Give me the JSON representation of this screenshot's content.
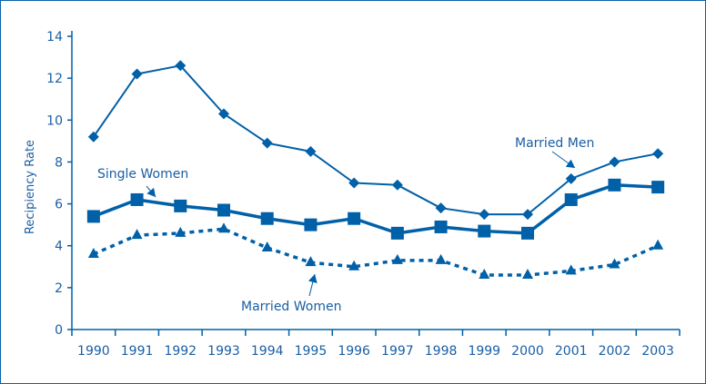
{
  "chart_data": {
    "type": "line",
    "title": "",
    "xlabel": "",
    "ylabel": "Recipiency Rate",
    "ylim": [
      0,
      14
    ],
    "yticks": [
      0,
      2,
      4,
      6,
      8,
      10,
      12,
      14
    ],
    "categories": [
      "1990",
      "1991",
      "1992",
      "1993",
      "1994",
      "1995",
      "1996",
      "1997",
      "1998",
      "1999",
      "2000",
      "2001",
      "2002",
      "2003"
    ],
    "grid": false,
    "legend": "inline annotations",
    "color": "#0060a8",
    "series": [
      {
        "name": "Married Men",
        "marker": "diamond",
        "style": "solid",
        "values": [
          9.2,
          12.2,
          12.6,
          10.3,
          8.9,
          8.5,
          7.0,
          6.9,
          5.8,
          5.5,
          5.5,
          7.2,
          8.0,
          8.4
        ]
      },
      {
        "name": "Single Women",
        "marker": "square",
        "style": "solid-thick",
        "values": [
          5.4,
          6.2,
          5.9,
          5.7,
          5.3,
          5.0,
          5.3,
          4.6,
          4.9,
          4.7,
          4.6,
          6.2,
          6.9,
          6.8
        ]
      },
      {
        "name": "Married Women",
        "marker": "triangle",
        "style": "dotted",
        "values": [
          3.6,
          4.5,
          4.6,
          4.8,
          3.9,
          3.2,
          3.0,
          3.3,
          3.3,
          2.6,
          2.6,
          2.8,
          3.1,
          4.0
        ]
      }
    ]
  }
}
